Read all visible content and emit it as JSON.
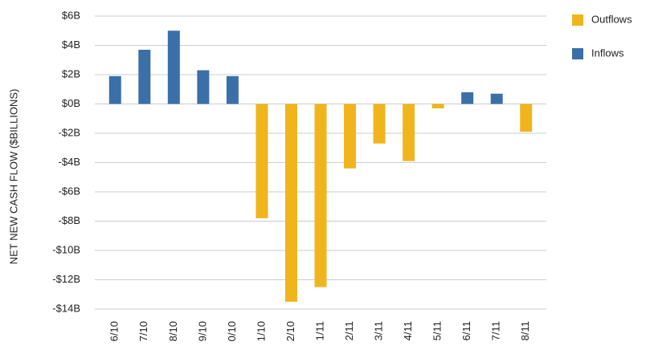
{
  "chart_data": {
    "type": "bar",
    "y_label": "NET NEW CASH FLOW ($BILLIONS)",
    "categories": [
      "6/10",
      "7/10",
      "8/10",
      "9/10",
      "0/10",
      "1/10",
      "2/10",
      "1/11",
      "2/11",
      "3/11",
      "4/11",
      "5/11",
      "6/11",
      "7/11",
      "8/11"
    ],
    "series": [
      {
        "name": "Outflows",
        "color": "#f0b51d",
        "values": [
          null,
          null,
          null,
          null,
          null,
          -7.8,
          -13.5,
          -12.5,
          -4.4,
          -2.7,
          -3.9,
          -0.3,
          null,
          null,
          -1.9
        ]
      },
      {
        "name": "Inflows",
        "color": "#3b6fa8",
        "values": [
          1.9,
          3.7,
          5.0,
          2.3,
          1.9,
          null,
          null,
          null,
          null,
          null,
          null,
          null,
          0.8,
          0.7,
          null
        ]
      }
    ],
    "ylim": [
      -14,
      6
    ],
    "yticks": [
      {
        "value": 6,
        "label": "$6B"
      },
      {
        "value": 4,
        "label": "$4B"
      },
      {
        "value": 2,
        "label": "$2B"
      },
      {
        "value": 0,
        "label": "$0B"
      },
      {
        "value": -2,
        "label": "-$2B"
      },
      {
        "value": -4,
        "label": "-$4B"
      },
      {
        "value": -6,
        "label": "-$6B"
      },
      {
        "value": -8,
        "label": "-$8B"
      },
      {
        "value": -10,
        "label": "-$10B"
      },
      {
        "value": -12,
        "label": "-$12B"
      },
      {
        "value": -14,
        "label": "-$14B"
      }
    ],
    "grid": true,
    "legend": "right"
  }
}
